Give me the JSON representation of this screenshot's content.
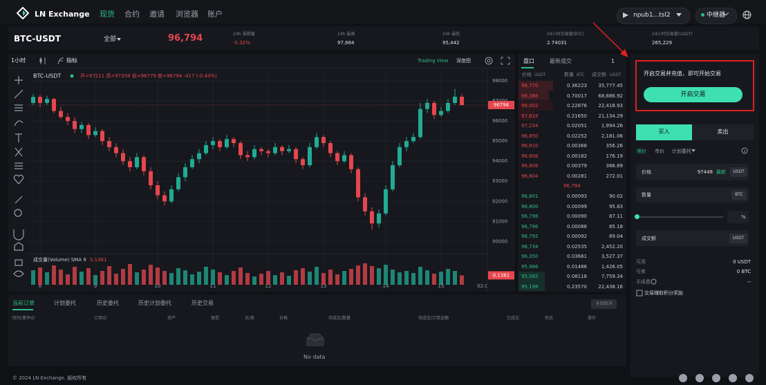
{
  "nav": {
    "brand": "LN Exchange",
    "items": [
      "现货",
      "合约",
      "邀请",
      "浏览器",
      "账户"
    ],
    "account": "npub1...tsl2",
    "relay": "中继器"
  },
  "ticker": {
    "pair": "BTC-USDT",
    "filter": "全部",
    "price": "96,794",
    "stats": [
      {
        "label": "24h 涨跌幅",
        "value": "-0.32%"
      },
      {
        "label": "24h 最高",
        "value": "97,664"
      },
      {
        "label": "24h 最低",
        "value": "95,442"
      },
      {
        "label": "24小时交易量(BTC)",
        "value": "2.74031"
      },
      {
        "label": "24小时交易量(USDT)",
        "value": "265,229"
      }
    ]
  },
  "toolbar": {
    "interval": "1小时",
    "indicators": "指标",
    "views": [
      "Trading View",
      "深度图"
    ]
  },
  "chart": {
    "type": "candlestick",
    "title": "BTC-USDT",
    "ohlc_text": "开=97211 高=97358 低=96779 收=96794 -417 (-0.43%)",
    "candles": [
      [
        96900,
        97350,
        96800,
        97200
      ],
      [
        97200,
        97300,
        96700,
        96900
      ],
      [
        96900,
        97250,
        96800,
        97100
      ],
      [
        97100,
        97150,
        96400,
        96500
      ],
      [
        96500,
        96700,
        96100,
        96200
      ],
      [
        96200,
        96400,
        95800,
        96000
      ],
      [
        96000,
        96200,
        95400,
        95600
      ],
      [
        95600,
        95950,
        95400,
        95800
      ],
      [
        95800,
        95900,
        95100,
        95300
      ],
      [
        95300,
        95700,
        95200,
        95500
      ],
      [
        95500,
        95600,
        94800,
        95000
      ],
      [
        95000,
        95200,
        94500,
        94700
      ],
      [
        94700,
        94900,
        94200,
        94400
      ],
      [
        94400,
        94600,
        93800,
        94000
      ],
      [
        94000,
        94200,
        93500,
        93700
      ],
      [
        93700,
        94400,
        93600,
        94200
      ],
      [
        94200,
        94300,
        93300,
        93500
      ],
      [
        93500,
        93700,
        92600,
        92800
      ],
      [
        92800,
        93000,
        92100,
        92300
      ],
      [
        92300,
        92500,
        91800,
        92000
      ],
      [
        92000,
        92800,
        91900,
        92600
      ],
      [
        92600,
        93400,
        92500,
        93200
      ],
      [
        93200,
        93900,
        93000,
        93700
      ],
      [
        93700,
        94300,
        93600,
        94100
      ],
      [
        94100,
        94600,
        93900,
        94400
      ],
      [
        94400,
        95000,
        94300,
        94800
      ],
      [
        94800,
        95200,
        94600,
        95000
      ],
      [
        95000,
        95100,
        94500,
        94700
      ],
      [
        94700,
        95300,
        94600,
        95100
      ],
      [
        95100,
        95200,
        94700,
        94900
      ],
      [
        94900,
        95000,
        94100,
        94300
      ],
      [
        94300,
        94500,
        94000,
        94200
      ],
      [
        94200,
        94800,
        94100,
        94600
      ],
      [
        94600,
        94700,
        94300,
        94500
      ],
      [
        94500,
        94600,
        94200,
        94400
      ],
      [
        94400,
        94900,
        94300,
        94700
      ],
      [
        94700,
        94800,
        94300,
        94500
      ],
      [
        94500,
        94800,
        94400,
        94600
      ],
      [
        94600,
        94700,
        93900,
        94100
      ],
      [
        94100,
        94200,
        93600,
        93800
      ],
      [
        93800,
        94900,
        93700,
        94700
      ],
      [
        94700,
        95400,
        94600,
        95200
      ],
      [
        95200,
        95300,
        94700,
        94900
      ],
      [
        94900,
        95000,
        94200,
        94400
      ],
      [
        94400,
        94500,
        93800,
        94000
      ],
      [
        94000,
        94500,
        93900,
        94300
      ],
      [
        94300,
        94400,
        93400,
        93600
      ],
      [
        93600,
        93700,
        92000,
        92200
      ],
      [
        92200,
        92400,
        91300,
        91500
      ],
      [
        91500,
        91700,
        90600,
        90900
      ],
      [
        90900,
        91600,
        90700,
        91400
      ],
      [
        91400,
        92800,
        91300,
        92600
      ],
      [
        92600,
        94000,
        92500,
        93800
      ],
      [
        93800,
        94900,
        93700,
        94700
      ],
      [
        94700,
        95200,
        94500,
        95000
      ],
      [
        95000,
        95400,
        94900,
        95200
      ],
      [
        95200,
        96900,
        95100,
        96600
      ],
      [
        96600,
        97100,
        96400,
        96900
      ],
      [
        96900,
        97000,
        96100,
        96300
      ],
      [
        96300,
        96700,
        96200,
        96500
      ],
      [
        96500,
        97100,
        96400,
        96900
      ],
      [
        96900,
        97600,
        96800,
        97211
      ],
      [
        97211,
        97358,
        96779,
        96794
      ]
    ],
    "ylim": [
      89600,
      98550
    ],
    "yticks": [
      98000,
      97000,
      96000,
      95000,
      94000,
      93000,
      92000,
      91000,
      90000
    ],
    "xticks": [
      {
        "value": 1,
        "label": "8"
      },
      {
        "value": 9,
        "label": "9"
      },
      {
        "value": 18,
        "label": "10"
      },
      {
        "value": 26,
        "label": "11"
      },
      {
        "value": 34,
        "label": "12"
      },
      {
        "value": 42,
        "label": "13"
      },
      {
        "value": 51,
        "label": "14"
      },
      {
        "value": 59,
        "label": "15"
      },
      {
        "value": 65,
        "label": "02:0"
      }
    ],
    "volume_title": "成交量(Volume) SMA 9",
    "volumes": [
      0.21,
      0.25,
      0.18,
      0.28,
      0.22,
      0.15,
      0.26,
      0.19,
      0.24,
      0.14,
      0.2,
      0.27,
      0.16,
      0.23,
      0.3,
      0.18,
      0.22,
      0.29,
      0.25,
      0.2,
      0.17,
      0.24,
      0.21,
      0.15,
      0.19,
      0.26,
      0.22,
      0.18,
      0.14,
      0.2,
      0.25,
      0.17,
      0.12,
      0.16,
      0.2,
      0.14,
      0.18,
      0.13,
      0.21,
      0.24,
      0.19,
      0.26,
      0.17,
      0.22,
      0.15,
      0.2,
      0.23,
      0.28,
      0.31,
      0.27,
      0.24,
      0.29,
      0.22,
      0.18,
      0.2,
      0.17,
      0.26,
      0.21,
      0.16,
      0.19,
      0.23,
      0.2,
      0.1361
    ],
    "volume_ylim": [
      0,
      0.4
    ],
    "up_color": "#22ab94",
    "down_color": "#e5474f",
    "grid": true
  },
  "orderbook": {
    "tabs": [
      "盘口",
      "最新成交"
    ],
    "precision": "1",
    "headers": [
      [
        "价格",
        "USDT"
      ],
      [
        "数量",
        "BTC"
      ],
      [
        "成交额",
        "USDT"
      ]
    ],
    "asks": [
      [
        "98,770",
        "0.36223",
        "35,777.45"
      ],
      [
        "98,386",
        "0.70017",
        "68,886.92"
      ],
      [
        "98,002",
        "0.22876",
        "22,418.93"
      ],
      [
        "97,618",
        "0.21650",
        "21,134.29"
      ],
      [
        "97,234",
        "0.02051",
        "1,994.26"
      ],
      [
        "96,850",
        "0.02252",
        "2,181.06"
      ],
      [
        "96,810",
        "0.00368",
        "356.26"
      ],
      [
        "96,808",
        "0.00182",
        "176.19"
      ],
      [
        "96,806",
        "0.00379",
        "366.89"
      ],
      [
        "96,804",
        "0.00281",
        "272.01"
      ]
    ],
    "mid": "96,794",
    "bids": [
      [
        "96,801",
        "0.00093",
        "90.02"
      ],
      [
        "96,800",
        "0.00099",
        "95.83"
      ],
      [
        "96,798",
        "0.00090",
        "87.11"
      ],
      [
        "96,796",
        "0.00088",
        "85.18"
      ],
      [
        "96,792",
        "0.00092",
        "89.04"
      ],
      [
        "96,734",
        "0.02535",
        "2,452.20"
      ],
      [
        "96,350",
        "0.03661",
        "3,527.37"
      ],
      [
        "95,966",
        "0.01486",
        "1,426.05"
      ],
      [
        "95,582",
        "0.08118",
        "7,759.34"
      ],
      [
        "95,198",
        "0.23570",
        "22,438.16"
      ]
    ]
  },
  "trade_panel": {
    "notice": "开启交易并充值，即可开始交易",
    "button": "开启交易",
    "sides": [
      "买入",
      "卖出"
    ],
    "order_types": [
      "限价",
      "市价",
      "计划委托"
    ],
    "fields": [
      {
        "label": "价格",
        "value": "97448",
        "hint": "最新",
        "unit": "USDT"
      },
      {
        "label": "数量",
        "unit": "BTC"
      },
      {
        "label": "成交额",
        "unit": "USDT"
      }
    ],
    "percent_unit": "%",
    "balances": [
      {
        "label": "可用",
        "value": "0 USDT"
      },
      {
        "label": "可卖",
        "value": "0 BTC"
      },
      {
        "label": "手续费",
        "value": "--"
      }
    ],
    "rewards": "交易赚取积分奖励"
  },
  "orders": {
    "tabs": [
      "当前订单",
      "计划委托",
      "历史委托",
      "历史计划委托",
      "历史交易"
    ],
    "cancel_all": "全部取消",
    "columns": [
      "时间/事件ID",
      "订单ID",
      "资产",
      "类型",
      "买/卖",
      "价格",
      "待成交/数量",
      "待成交/订单金额",
      "已成交",
      "状态",
      "操作"
    ],
    "empty": "No data"
  },
  "footer": "© 2024 LN Exchange. 版权所有"
}
